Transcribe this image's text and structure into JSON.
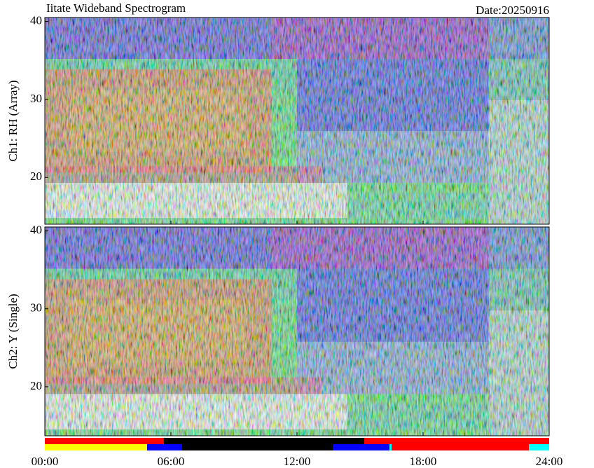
{
  "title": "Iitate Wideband Spectrogram",
  "date": "Date:20250916",
  "chart_data": [
    {
      "type": "heatmap",
      "ylabel": "Ch1: RH (Array)",
      "ylim": [
        14.0,
        40.5
      ],
      "yticks": [
        20,
        30,
        40
      ],
      "xlim": [
        0,
        24
      ],
      "xticks": [
        0,
        6,
        12,
        18,
        24
      ]
    },
    {
      "type": "heatmap",
      "ylabel": "Ch2: Y (Single)",
      "ylim": [
        13.7,
        40.5
      ],
      "yticks": [
        20,
        30,
        40
      ],
      "xlim": [
        0,
        24
      ],
      "xticks": [
        {
          "value": 0,
          "label": "00:00"
        },
        {
          "value": 6,
          "label": "06:00"
        },
        {
          "value": 12,
          "label": "12:00"
        },
        {
          "value": 18,
          "label": "18:00"
        },
        {
          "value": 24,
          "label": "24:00"
        }
      ]
    }
  ]
}
